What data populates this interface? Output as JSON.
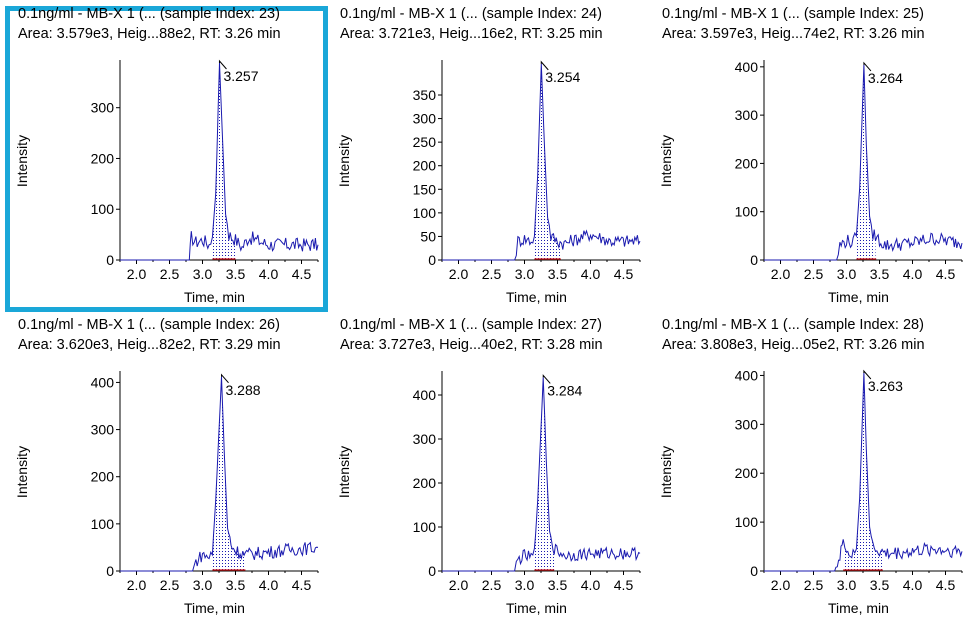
{
  "axis": {
    "xlabel": "Time, min",
    "ylabel": "Intensity",
    "x_ticks": [
      "2.0",
      "2.5",
      "3.0",
      "3.5",
      "4.0",
      "4.5"
    ]
  },
  "colors": {
    "trace": "#1a1aaf",
    "baseline": "#d01818",
    "selection": "#1aa7d8"
  },
  "panels": [
    {
      "title": "0.1ng/ml - MB-X 1 (... (sample Index: 23)",
      "summary": "Area: 3.579e3, Heig...88e2, RT: 3.26 min",
      "apex_label": "3.257",
      "y_ticks": [
        "0",
        "100",
        "200",
        "300"
      ],
      "selected": true
    },
    {
      "title": "0.1ng/ml - MB-X 1 (... (sample Index: 24)",
      "summary": "Area: 3.721e3, Heig...16e2, RT: 3.25 min",
      "apex_label": "3.254",
      "y_ticks": [
        "0",
        "50",
        "100",
        "150",
        "200",
        "250",
        "300",
        "350"
      ],
      "selected": false
    },
    {
      "title": "0.1ng/ml - MB-X 1 (... (sample Index: 25)",
      "summary": "Area: 3.597e3, Heig...74e2, RT: 3.26 min",
      "apex_label": "3.264",
      "y_ticks": [
        "0",
        "100",
        "200",
        "300",
        "400"
      ],
      "selected": false
    },
    {
      "title": "0.1ng/ml - MB-X 1 (... (sample Index: 26)",
      "summary": "Area: 3.620e3, Heig...82e2, RT: 3.29 min",
      "apex_label": "3.288",
      "y_ticks": [
        "0",
        "100",
        "200",
        "300",
        "400"
      ],
      "selected": false
    },
    {
      "title": "0.1ng/ml - MB-X 1 (... (sample Index: 27)",
      "summary": "Area: 3.727e3, Heig...40e2, RT: 3.28 min",
      "apex_label": "3.284",
      "y_ticks": [
        "0",
        "100",
        "200",
        "300",
        "400"
      ],
      "selected": false
    },
    {
      "title": "0.1ng/ml - MB-X 1 (... (sample Index: 28)",
      "summary": "Area: 3.808e3, Heig...05e2, RT: 3.26 min",
      "apex_label": "3.263",
      "y_ticks": [
        "0",
        "100",
        "200",
        "300",
        "400"
      ],
      "selected": false
    }
  ],
  "chart_data": [
    {
      "type": "area",
      "series": [
        {
          "x": [
            1.75,
            2.8,
            2.83,
            2.9,
            3.0,
            3.1,
            3.15,
            3.2,
            3.257,
            3.3,
            3.35,
            3.4,
            3.5,
            3.6,
            3.7,
            4.0,
            4.3,
            4.75
          ],
          "values": [
            0,
            0,
            45,
            35,
            40,
            30,
            45,
            130,
            388,
            250,
            90,
            50,
            40,
            25,
            45,
            30,
            30,
            30
          ]
        }
      ],
      "integration": {
        "start": 3.15,
        "end": 3.5
      },
      "apex": 3.257,
      "xlim": [
        1.75,
        4.75
      ],
      "ylim": [
        0,
        390
      ]
    },
    {
      "type": "area",
      "series": [
        {
          "x": [
            1.75,
            2.85,
            2.9,
            3.0,
            3.1,
            3.15,
            3.2,
            3.254,
            3.3,
            3.35,
            3.4,
            3.5,
            3.6,
            4.0,
            4.3,
            4.75
          ],
          "values": [
            0,
            0,
            40,
            45,
            40,
            50,
            180,
            416,
            250,
            90,
            50,
            40,
            35,
            55,
            40,
            40
          ]
        }
      ],
      "integration": {
        "start": 3.15,
        "end": 3.55
      },
      "apex": 3.254,
      "xlim": [
        1.75,
        4.75
      ],
      "ylim": [
        0,
        420
      ]
    },
    {
      "type": "area",
      "series": [
        {
          "x": [
            1.75,
            2.85,
            2.9,
            3.0,
            3.1,
            3.15,
            3.2,
            3.264,
            3.3,
            3.35,
            3.4,
            3.5,
            3.6,
            4.0,
            4.3,
            4.75
          ],
          "values": [
            0,
            0,
            30,
            40,
            35,
            50,
            150,
            404,
            240,
            90,
            55,
            40,
            30,
            35,
            45,
            35
          ]
        }
      ],
      "integration": {
        "start": 3.15,
        "end": 3.45
      },
      "apex": 3.264,
      "xlim": [
        1.75,
        4.75
      ],
      "ylim": [
        0,
        410
      ]
    },
    {
      "type": "area",
      "series": [
        {
          "x": [
            1.75,
            2.85,
            2.9,
            3.0,
            3.1,
            3.15,
            3.2,
            3.288,
            3.33,
            3.38,
            3.45,
            3.55,
            3.65,
            4.0,
            4.3,
            4.75
          ],
          "values": [
            0,
            0,
            20,
            35,
            30,
            35,
            150,
            412,
            250,
            90,
            50,
            40,
            35,
            40,
            45,
            50
          ]
        }
      ],
      "integration": {
        "start": 3.15,
        "end": 3.65
      },
      "apex": 3.288,
      "xlim": [
        1.75,
        4.75
      ],
      "ylim": [
        0,
        420
      ]
    },
    {
      "type": "area",
      "series": [
        {
          "x": [
            1.75,
            2.85,
            2.9,
            3.0,
            3.1,
            3.15,
            3.2,
            3.284,
            3.33,
            3.38,
            3.45,
            3.55,
            3.65,
            4.0,
            4.3,
            4.75
          ],
          "values": [
            0,
            0,
            25,
            35,
            30,
            40,
            160,
            440,
            250,
            90,
            50,
            40,
            35,
            40,
            40,
            40
          ]
        }
      ],
      "integration": {
        "start": 3.15,
        "end": 3.45
      },
      "apex": 3.284,
      "xlim": [
        1.75,
        4.75
      ],
      "ylim": [
        0,
        450
      ]
    },
    {
      "type": "area",
      "series": [
        {
          "x": [
            1.75,
            2.8,
            2.9,
            2.95,
            3.0,
            3.1,
            3.15,
            3.2,
            3.263,
            3.3,
            3.35,
            3.4,
            3.5,
            3.6,
            4.0,
            4.3,
            4.75
          ],
          "values": [
            0,
            0,
            20,
            75,
            40,
            30,
            45,
            150,
            405,
            250,
            90,
            50,
            40,
            35,
            40,
            45,
            40
          ]
        }
      ],
      "integration": {
        "start": 2.95,
        "end": 3.55
      },
      "apex": 3.263,
      "xlim": [
        1.75,
        4.75
      ],
      "ylim": [
        0,
        405
      ]
    }
  ]
}
